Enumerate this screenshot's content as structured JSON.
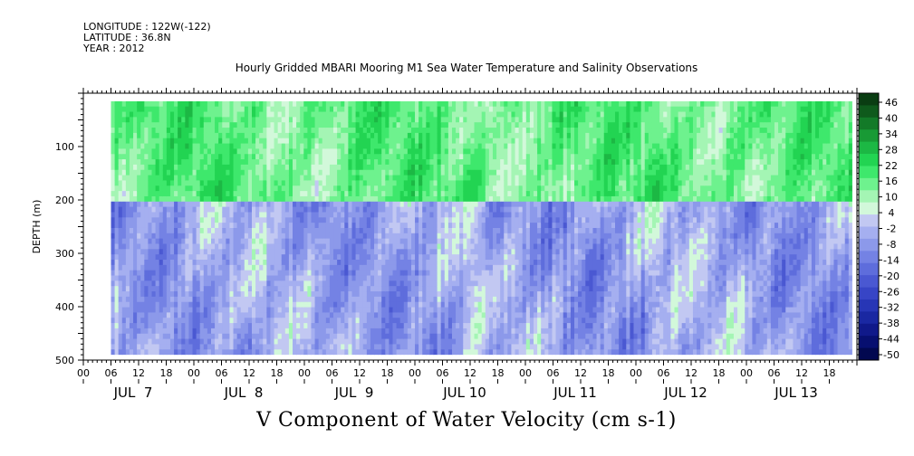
{
  "header": {
    "longitude": "LONGITUDE : 122W(-122)",
    "latitude": "LATITUDE : 36.8N",
    "year": "YEAR : 2012"
  },
  "title": "Hourly Gridded MBARI Mooring M1 Sea Water Temperature and Salinity Observations",
  "bottom_title": "V Component of Water Velocity (cm s-1)",
  "chart_data": {
    "type": "heatmap",
    "title": "Hourly Gridded MBARI Mooring M1 Sea Water Temperature and Salinity Observations",
    "ylabel": "DEPTH (m)",
    "xlabel": "",
    "variable": "V Component of Water Velocity (cm s-1)",
    "y_axis": {
      "range": [
        0,
        500
      ],
      "inverted": true,
      "ticks": [
        100,
        200,
        300,
        400,
        500
      ]
    },
    "x_axis": {
      "hour_tick_labels": [
        "00",
        "06",
        "12",
        "18",
        "00",
        "06",
        "12",
        "18",
        "00",
        "06",
        "12",
        "18",
        "00",
        "06",
        "12",
        "18",
        "00",
        "06",
        "12",
        "18",
        "00",
        "06",
        "12",
        "18",
        "00",
        "06",
        "12",
        "18"
      ],
      "day_labels": [
        "JUL  7",
        "JUL  8",
        "JUL  9",
        "JUL 10",
        "JUL 11",
        "JUL 12",
        "JUL 13"
      ],
      "range_hours": [
        0,
        168
      ]
    },
    "data_extent": {
      "start_hour": 6,
      "end_hour": 167,
      "depth_min": 15,
      "depth_max": 490
    },
    "colorbar": {
      "labels": [
        "46",
        "40",
        "34",
        "28",
        "22",
        "16",
        "10",
        "4",
        "-2",
        "-8",
        "-14",
        "-20",
        "-26",
        "-32",
        "-38",
        "-44",
        "-50"
      ],
      "range": [
        -50,
        49
      ],
      "positive_color": "#22dd55",
      "negative_color": "#8fa0ee",
      "colors": [
        "#0a3d12",
        "#0f5a1c",
        "#137a28",
        "#189a35",
        "#1cb844",
        "#22d452",
        "#3ee86c",
        "#6ef28e",
        "#a4f5b4",
        "#d2f8da",
        "#c2c8f2",
        "#a5aff0",
        "#8c99ea",
        "#7482e4",
        "#5e6ddc",
        "#4a58d2",
        "#3745c6",
        "#2736b6",
        "#1a28a2",
        "#10198a",
        "#070f70",
        "#020850"
      ]
    },
    "depth_regime": [
      {
        "depth_range": [
          15,
          200
        ],
        "dominant": "positive",
        "typical_values": [
          4,
          28
        ]
      },
      {
        "depth_range": [
          200,
          490
        ],
        "dominant": "mixed",
        "typical_values": [
          -20,
          10
        ]
      }
    ]
  }
}
